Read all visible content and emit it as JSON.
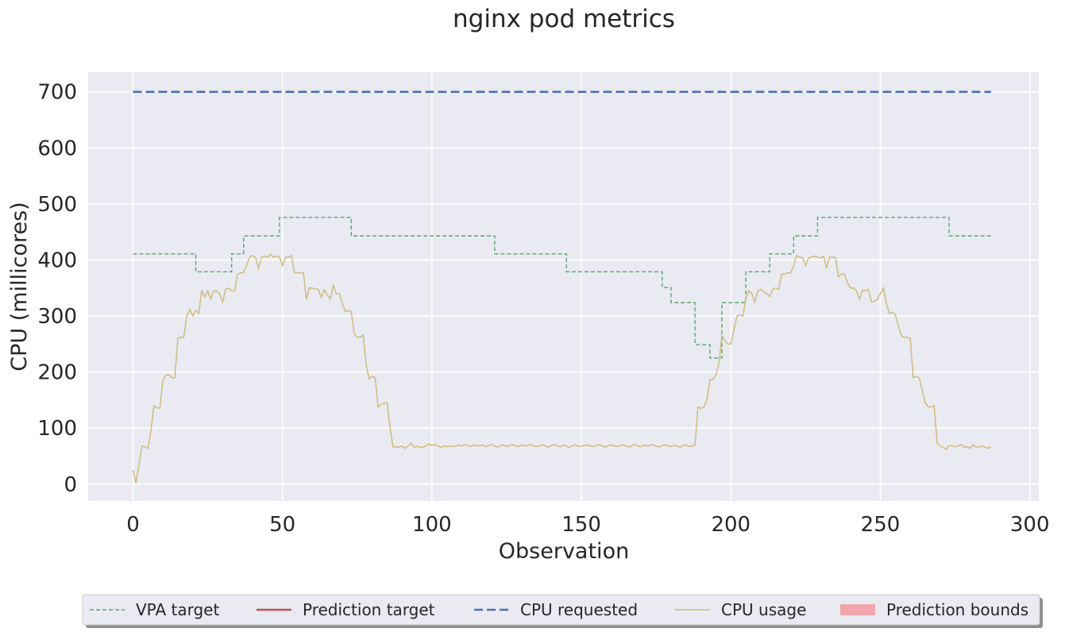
{
  "chart_data": {
    "type": "line",
    "title": "nginx pod metrics",
    "xlabel": "Observation",
    "ylabel": "CPU (millicores)",
    "xlim": [
      -15,
      303
    ],
    "ylim": [
      -30,
      735
    ],
    "xticks": [
      0,
      50,
      100,
      150,
      200,
      250,
      300
    ],
    "yticks": [
      0,
      100,
      200,
      300,
      400,
      500,
      600,
      700
    ],
    "grid": true,
    "legend_position": "bottom-center",
    "legend": [
      "VPA target",
      "Prediction target",
      "CPU requested",
      "CPU usage",
      "Prediction bounds"
    ],
    "series": [
      {
        "name": "VPA target",
        "color": "#55a868",
        "style": "dashed-thin",
        "step": true,
        "points": [
          [
            0,
            411
          ],
          [
            21,
            411
          ],
          [
            21,
            379
          ],
          [
            33,
            379
          ],
          [
            33,
            411
          ],
          [
            37,
            411
          ],
          [
            37,
            443
          ],
          [
            49,
            443
          ],
          [
            49,
            476
          ],
          [
            73,
            476
          ],
          [
            73,
            443
          ],
          [
            121,
            443
          ],
          [
            121,
            411
          ],
          [
            145,
            411
          ],
          [
            145,
            379
          ],
          [
            177,
            379
          ],
          [
            177,
            351
          ],
          [
            180,
            351
          ],
          [
            180,
            324
          ],
          [
            188,
            324
          ],
          [
            188,
            249
          ],
          [
            193,
            249
          ],
          [
            193,
            225
          ],
          [
            197,
            225
          ],
          [
            197,
            324
          ],
          [
            205,
            324
          ],
          [
            205,
            379
          ],
          [
            213,
            379
          ],
          [
            213,
            411
          ],
          [
            221,
            411
          ],
          [
            221,
            443
          ],
          [
            229,
            443
          ],
          [
            229,
            476
          ],
          [
            273,
            476
          ],
          [
            273,
            443
          ],
          [
            287,
            443
          ]
        ]
      },
      {
        "name": "Prediction target",
        "color": "#c44e52",
        "style": "solid",
        "points": []
      },
      {
        "name": "CPU requested",
        "color": "#4c72b0",
        "style": "dashed-thick",
        "points": [
          [
            0,
            700
          ],
          [
            287,
            700
          ]
        ]
      },
      {
        "name": "CPU usage",
        "color": "#ccb974",
        "style": "solid-thin",
        "points": [
          [
            0,
            25
          ],
          [
            1,
            2
          ],
          [
            2,
            35
          ],
          [
            3,
            68
          ],
          [
            4,
            67
          ],
          [
            5,
            64
          ],
          [
            6,
            95
          ],
          [
            7,
            140
          ],
          [
            8,
            136
          ],
          [
            9,
            136
          ],
          [
            10,
            185
          ],
          [
            11,
            195
          ],
          [
            12,
            195
          ],
          [
            13,
            190
          ],
          [
            14,
            190
          ],
          [
            15,
            260
          ],
          [
            16,
            262
          ],
          [
            17,
            262
          ],
          [
            18,
            300
          ],
          [
            19,
            312
          ],
          [
            20,
            300
          ],
          [
            21,
            310
          ],
          [
            22,
            305
          ],
          [
            23,
            345
          ],
          [
            24,
            334
          ],
          [
            25,
            345
          ],
          [
            26,
            330
          ],
          [
            27,
            345
          ],
          [
            28,
            344
          ],
          [
            29,
            340
          ],
          [
            30,
            325
          ],
          [
            31,
            348
          ],
          [
            32,
            350
          ],
          [
            33,
            345
          ],
          [
            34,
            345
          ],
          [
            35,
            375
          ],
          [
            36,
            377
          ],
          [
            37,
            378
          ],
          [
            38,
            390
          ],
          [
            39,
            405
          ],
          [
            40,
            408
          ],
          [
            41,
            405
          ],
          [
            42,
            385
          ],
          [
            43,
            405
          ],
          [
            44,
            407
          ],
          [
            45,
            405
          ],
          [
            46,
            410
          ],
          [
            47,
            405
          ],
          [
            48,
            407
          ],
          [
            49,
            405
          ],
          [
            50,
            390
          ],
          [
            51,
            405
          ],
          [
            52,
            405
          ],
          [
            53,
            408
          ],
          [
            54,
            378
          ],
          [
            55,
            377
          ],
          [
            56,
            377
          ],
          [
            57,
            377
          ],
          [
            58,
            330
          ],
          [
            59,
            350
          ],
          [
            60,
            350
          ],
          [
            61,
            348
          ],
          [
            62,
            348
          ],
          [
            63,
            333
          ],
          [
            64,
            347
          ],
          [
            65,
            338
          ],
          [
            66,
            330
          ],
          [
            67,
            355
          ],
          [
            68,
            340
          ],
          [
            69,
            340
          ],
          [
            70,
            323
          ],
          [
            71,
            308
          ],
          [
            72,
            310
          ],
          [
            73,
            308
          ],
          [
            74,
            268
          ],
          [
            75,
            262
          ],
          [
            76,
            262
          ],
          [
            77,
            266
          ],
          [
            78,
            212
          ],
          [
            79,
            188
          ],
          [
            80,
            193
          ],
          [
            81,
            190
          ],
          [
            82,
            138
          ],
          [
            83,
            142
          ],
          [
            84,
            145
          ],
          [
            85,
            145
          ],
          [
            86,
            100
          ],
          [
            87,
            66
          ],
          [
            88,
            67
          ],
          [
            89,
            66
          ],
          [
            90,
            68
          ],
          [
            91,
            64
          ],
          [
            92,
            68
          ],
          [
            93,
            73
          ],
          [
            94,
            66
          ],
          [
            95,
            68
          ],
          [
            96,
            66
          ],
          [
            97,
            66
          ],
          [
            98,
            68
          ],
          [
            99,
            72
          ],
          [
            100,
            69
          ],
          [
            101,
            71
          ],
          [
            102,
            68
          ],
          [
            103,
            66
          ],
          [
            104,
            68
          ],
          [
            105,
            67
          ],
          [
            106,
            68
          ],
          [
            107,
            67
          ],
          [
            108,
            68
          ],
          [
            109,
            70
          ],
          [
            110,
            68
          ],
          [
            111,
            71
          ],
          [
            112,
            69
          ],
          [
            113,
            67
          ],
          [
            114,
            70
          ],
          [
            115,
            69
          ],
          [
            116,
            68
          ],
          [
            117,
            70
          ],
          [
            118,
            67
          ],
          [
            119,
            69
          ],
          [
            120,
            71
          ],
          [
            121,
            68
          ],
          [
            122,
            66
          ],
          [
            123,
            69
          ],
          [
            124,
            70
          ],
          [
            125,
            67
          ],
          [
            126,
            69
          ],
          [
            127,
            71
          ],
          [
            128,
            68
          ],
          [
            129,
            67
          ],
          [
            130,
            70
          ],
          [
            131,
            68
          ],
          [
            132,
            69
          ],
          [
            133,
            71
          ],
          [
            134,
            68
          ],
          [
            135,
            67
          ],
          [
            136,
            69
          ],
          [
            137,
            70
          ],
          [
            138,
            68
          ],
          [
            139,
            66
          ],
          [
            140,
            69
          ],
          [
            141,
            71
          ],
          [
            142,
            68
          ],
          [
            143,
            67
          ],
          [
            144,
            70
          ],
          [
            145,
            68
          ],
          [
            146,
            65
          ],
          [
            147,
            69
          ],
          [
            148,
            70
          ],
          [
            149,
            67
          ],
          [
            150,
            68
          ],
          [
            151,
            69
          ],
          [
            152,
            70
          ],
          [
            153,
            68
          ],
          [
            154,
            67
          ],
          [
            155,
            69
          ],
          [
            156,
            71
          ],
          [
            157,
            68
          ],
          [
            158,
            66
          ],
          [
            159,
            69
          ],
          [
            160,
            70
          ],
          [
            161,
            68
          ],
          [
            162,
            67
          ],
          [
            163,
            69
          ],
          [
            164,
            70
          ],
          [
            165,
            68
          ],
          [
            166,
            66
          ],
          [
            167,
            69
          ],
          [
            168,
            71
          ],
          [
            169,
            68
          ],
          [
            170,
            67
          ],
          [
            171,
            70
          ],
          [
            172,
            68
          ],
          [
            173,
            69
          ],
          [
            174,
            71
          ],
          [
            175,
            68
          ],
          [
            176,
            66
          ],
          [
            177,
            69
          ],
          [
            178,
            70
          ],
          [
            179,
            68
          ],
          [
            180,
            67
          ],
          [
            181,
            69
          ],
          [
            182,
            68
          ],
          [
            183,
            66
          ],
          [
            184,
            69
          ],
          [
            185,
            70
          ],
          [
            186,
            67
          ],
          [
            187,
            68
          ],
          [
            188,
            70
          ],
          [
            189,
            138
          ],
          [
            190,
            135
          ],
          [
            191,
            138
          ],
          [
            192,
            150
          ],
          [
            193,
            187
          ],
          [
            194,
            187
          ],
          [
            195,
            195
          ],
          [
            196,
            215
          ],
          [
            197,
            265
          ],
          [
            198,
            256
          ],
          [
            199,
            250
          ],
          [
            200,
            250
          ],
          [
            201,
            274
          ],
          [
            202,
            300
          ],
          [
            203,
            302
          ],
          [
            204,
            300
          ],
          [
            205,
            330
          ],
          [
            206,
            345
          ],
          [
            207,
            340
          ],
          [
            208,
            325
          ],
          [
            209,
            345
          ],
          [
            210,
            348
          ],
          [
            211,
            343
          ],
          [
            212,
            340
          ],
          [
            213,
            335
          ],
          [
            214,
            348
          ],
          [
            215,
            350
          ],
          [
            216,
            348
          ],
          [
            217,
            375
          ],
          [
            218,
            375
          ],
          [
            219,
            377
          ],
          [
            220,
            377
          ],
          [
            221,
            390
          ],
          [
            222,
            408
          ],
          [
            223,
            405
          ],
          [
            224,
            404
          ],
          [
            225,
            390
          ],
          [
            226,
            404
          ],
          [
            227,
            405
          ],
          [
            228,
            407
          ],
          [
            229,
            405
          ],
          [
            230,
            404
          ],
          [
            231,
            407
          ],
          [
            232,
            385
          ],
          [
            233,
            405
          ],
          [
            234,
            405
          ],
          [
            235,
            404
          ],
          [
            236,
            370
          ],
          [
            237,
            375
          ],
          [
            238,
            375
          ],
          [
            239,
            360
          ],
          [
            240,
            350
          ],
          [
            241,
            350
          ],
          [
            242,
            345
          ],
          [
            243,
            330
          ],
          [
            244,
            346
          ],
          [
            245,
            345
          ],
          [
            246,
            348
          ],
          [
            247,
            325
          ],
          [
            248,
            326
          ],
          [
            249,
            330
          ],
          [
            250,
            340
          ],
          [
            251,
            350
          ],
          [
            252,
            323
          ],
          [
            253,
            305
          ],
          [
            254,
            306
          ],
          [
            255,
            303
          ],
          [
            256,
            283
          ],
          [
            257,
            265
          ],
          [
            258,
            262
          ],
          [
            259,
            262
          ],
          [
            260,
            260
          ],
          [
            261,
            190
          ],
          [
            262,
            192
          ],
          [
            263,
            190
          ],
          [
            264,
            168
          ],
          [
            265,
            145
          ],
          [
            266,
            138
          ],
          [
            267,
            138
          ],
          [
            268,
            140
          ],
          [
            269,
            73
          ],
          [
            270,
            68
          ],
          [
            271,
            66
          ],
          [
            272,
            62
          ],
          [
            273,
            69
          ],
          [
            274,
            68
          ],
          [
            275,
            67
          ],
          [
            276,
            68
          ],
          [
            277,
            71
          ],
          [
            278,
            66
          ],
          [
            279,
            67
          ],
          [
            280,
            64
          ],
          [
            281,
            70
          ],
          [
            282,
            66
          ],
          [
            283,
            67
          ],
          [
            284,
            68
          ],
          [
            285,
            66
          ],
          [
            286,
            64
          ],
          [
            287,
            67
          ]
        ]
      },
      {
        "name": "Prediction bounds",
        "color": "#f0a6ab",
        "style": "fill",
        "points": []
      }
    ]
  }
}
